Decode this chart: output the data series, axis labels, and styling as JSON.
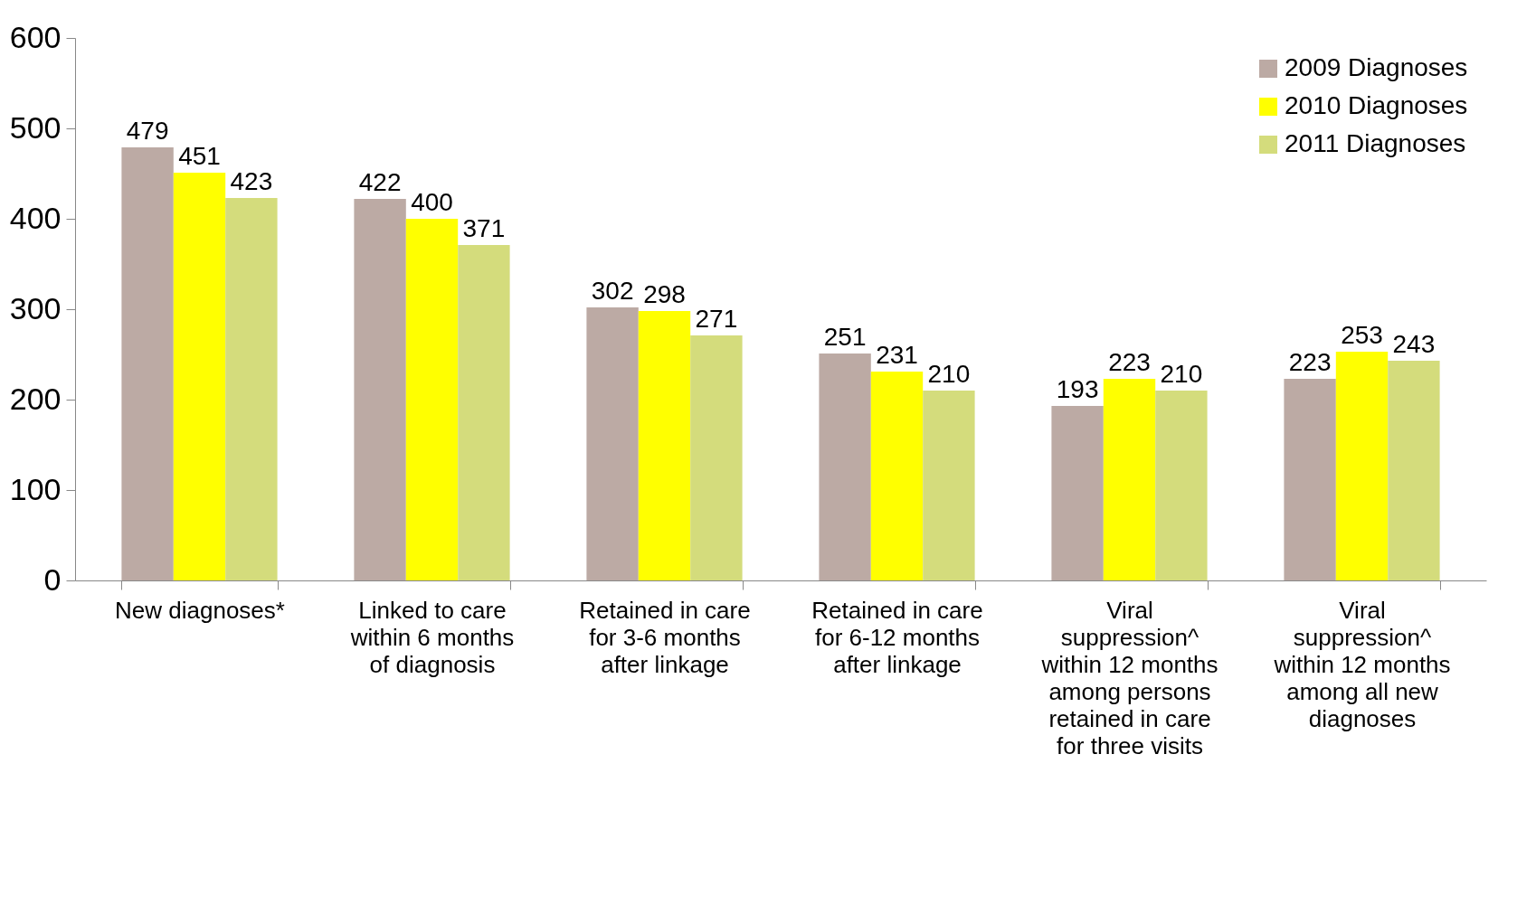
{
  "chart_data": {
    "type": "bar",
    "categories": [
      "New diagnoses*",
      "Linked to care within 6 months of diagnosis",
      "Retained in care for 3-6 months after linkage",
      "Retained in care for 6-12 months after linkage",
      "Viral suppression^ within 12 months among persons retained in care for three visits",
      "Viral suppression^ within 12 months among all new diagnoses"
    ],
    "series": [
      {
        "name": "2009 Diagnoses",
        "color": "#bcaaa4",
        "values": [
          479,
          422,
          302,
          251,
          193,
          223
        ]
      },
      {
        "name": "2010 Diagnoses",
        "color": "#ffff00",
        "values": [
          451,
          400,
          298,
          231,
          223,
          253
        ]
      },
      {
        "name": "2011 Diagnoses",
        "color": "#d4dc7c",
        "values": [
          423,
          371,
          271,
          210,
          210,
          243
        ]
      }
    ],
    "ylim": [
      0,
      600
    ],
    "yticks": [
      0,
      100,
      200,
      300,
      400,
      500,
      600
    ],
    "grid": false,
    "legend": "top right",
    "data_labels": true
  }
}
